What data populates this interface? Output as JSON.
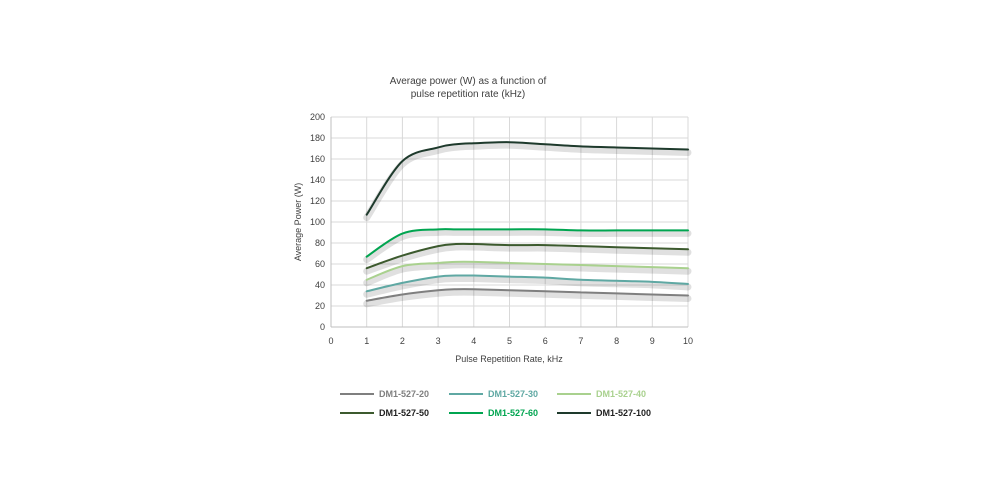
{
  "chart_data": {
    "type": "line",
    "title_line1": "Average power (W) as a function of",
    "title_line2": "pulse repetition rate (kHz)",
    "xlabel": "Pulse Repetition Rate, kHz",
    "ylabel": "Average Power (W)",
    "xlim": [
      0,
      10
    ],
    "ylim": [
      0,
      200
    ],
    "x_ticks": [
      "0",
      "1",
      "2",
      "3",
      "4",
      "5",
      "6",
      "7",
      "8",
      "9",
      "10"
    ],
    "y_ticks": [
      "0",
      "20",
      "40",
      "60",
      "80",
      "100",
      "120",
      "140",
      "160",
      "180",
      "200"
    ],
    "grid": true,
    "legend_position": "bottom",
    "x": [
      1,
      2,
      3,
      3.5,
      4,
      5,
      6,
      7,
      8,
      9,
      10
    ],
    "series": [
      {
        "name": "DM1-527-20",
        "color": "#7f7f7f",
        "text_color": "#7f7f7f",
        "values": [
          25,
          31,
          35,
          36,
          36,
          35,
          34,
          33,
          32,
          31,
          30
        ]
      },
      {
        "name": "DM1-527-30",
        "color": "#5fa8a3",
        "text_color": "#5fa8a3",
        "values": [
          34,
          42,
          48,
          49,
          49,
          48,
          47,
          45,
          44,
          43,
          41
        ]
      },
      {
        "name": "DM1-527-40",
        "color": "#a9d18e",
        "text_color": "#a9d18e",
        "values": [
          45,
          58,
          61,
          62,
          62,
          61,
          60,
          59,
          58,
          57,
          56
        ]
      },
      {
        "name": "DM1-527-50",
        "color": "#3c5a2e",
        "text_color": "#1f1f1f",
        "values": [
          56,
          68,
          77,
          79,
          79,
          78,
          78,
          77,
          76,
          75,
          74
        ]
      },
      {
        "name": "DM1-527-60",
        "color": "#00a550",
        "text_color": "#00a550",
        "values": [
          67,
          89,
          93,
          93,
          93,
          93,
          93,
          92,
          92,
          92,
          92
        ]
      },
      {
        "name": "DM1-527-100",
        "color": "#1e3a2c",
        "text_color": "#1f1f1f",
        "values": [
          107,
          158,
          171,
          174,
          175,
          176,
          174,
          172,
          171,
          170,
          169
        ]
      }
    ]
  }
}
